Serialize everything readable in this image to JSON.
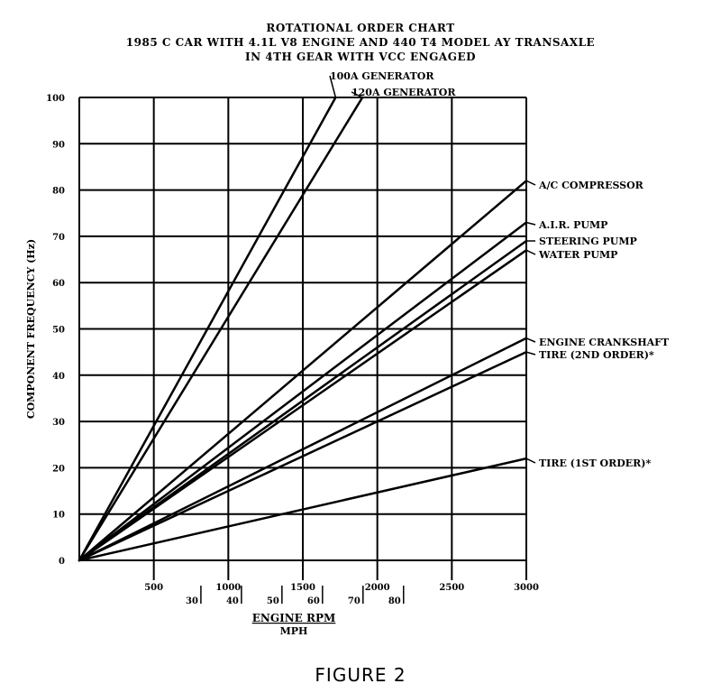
{
  "figure": {
    "title_lines": [
      "ROTATIONAL ORDER CHART",
      "1985 C CAR WITH 4.1L V8 ENGINE AND 440 T4 MODEL AY TRANSAXLE",
      "IN 4TH GEAR WITH VCC ENGAGED"
    ],
    "caption": "FIGURE 2"
  },
  "chart_data": {
    "type": "line",
    "title": "ROTATIONAL ORDER CHART",
    "ylabel": "COMPONENT FREQUENCY (Hz)",
    "xlabel": "ENGINE RPM",
    "xlabel2": "MPH",
    "xlim": [
      0,
      3000
    ],
    "ylim": [
      0,
      100
    ],
    "grid": true,
    "y_ticks": [
      0,
      10,
      20,
      30,
      40,
      50,
      60,
      70,
      80,
      90,
      100
    ],
    "rpm_ticks": [
      500,
      1000,
      1500,
      2000,
      2500,
      3000
    ],
    "mph_ticks": [
      {
        "label": "30",
        "rpm": 816
      },
      {
        "label": "40",
        "rpm": 1088
      },
      {
        "label": "50",
        "rpm": 1360
      },
      {
        "label": "60",
        "rpm": 1632
      },
      {
        "label": "70",
        "rpm": 1904
      },
      {
        "label": "80",
        "rpm": 2176
      }
    ],
    "series": [
      {
        "name": "100A GENERATOR",
        "x": [
          0,
          1720
        ],
        "y": [
          0,
          100
        ]
      },
      {
        "name": "120A GENERATOR",
        "x": [
          0,
          1900
        ],
        "y": [
          0,
          100
        ]
      },
      {
        "name": "A/C COMPRESSOR",
        "x": [
          0,
          3000
        ],
        "y": [
          0,
          82
        ]
      },
      {
        "name": "A.I.R. PUMP",
        "x": [
          0,
          3000
        ],
        "y": [
          0,
          73
        ]
      },
      {
        "name": "STEERING PUMP",
        "x": [
          0,
          3000
        ],
        "y": [
          0,
          69
        ]
      },
      {
        "name": "WATER PUMP",
        "x": [
          0,
          3000
        ],
        "y": [
          0,
          67
        ]
      },
      {
        "name": "ENGINE CRANKSHAFT",
        "x": [
          0,
          3000
        ],
        "y": [
          0,
          48
        ]
      },
      {
        "name": "TIRE (2ND ORDER)*",
        "x": [
          0,
          3000
        ],
        "y": [
          0,
          45
        ]
      },
      {
        "name": "TIRE (1ST ORDER)*",
        "x": [
          0,
          3000
        ],
        "y": [
          0,
          22
        ]
      }
    ]
  }
}
